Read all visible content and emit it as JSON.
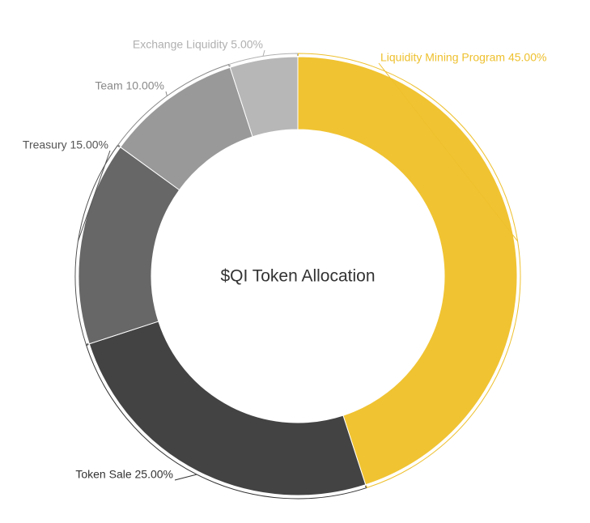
{
  "chart_data": {
    "type": "pie",
    "title": "$QI Token Allocation",
    "slices": [
      {
        "label": "Liquidity Mining Program",
        "value": 45.0,
        "display": "Liquidity Mining Program 45.00%",
        "color": "#f0c332",
        "label_color": "#eec02e"
      },
      {
        "label": "Token Sale",
        "value": 25.0,
        "display": "Token Sale 25.00%",
        "color": "#434343",
        "label_color": "#333333"
      },
      {
        "label": "Treasury",
        "value": 15.0,
        "display": "Treasury 15.00%",
        "color": "#676767",
        "label_color": "#555555"
      },
      {
        "label": "Team",
        "value": 10.0,
        "display": "Team 10.00%",
        "color": "#999999",
        "label_color": "#8a8a8a"
      },
      {
        "label": "Exchange Liquidity",
        "value": 5.0,
        "display": "Exchange Liquidity 5.00%",
        "color": "#b7b7b7",
        "label_color": "#b0b0b0"
      }
    ],
    "legend": "none"
  }
}
